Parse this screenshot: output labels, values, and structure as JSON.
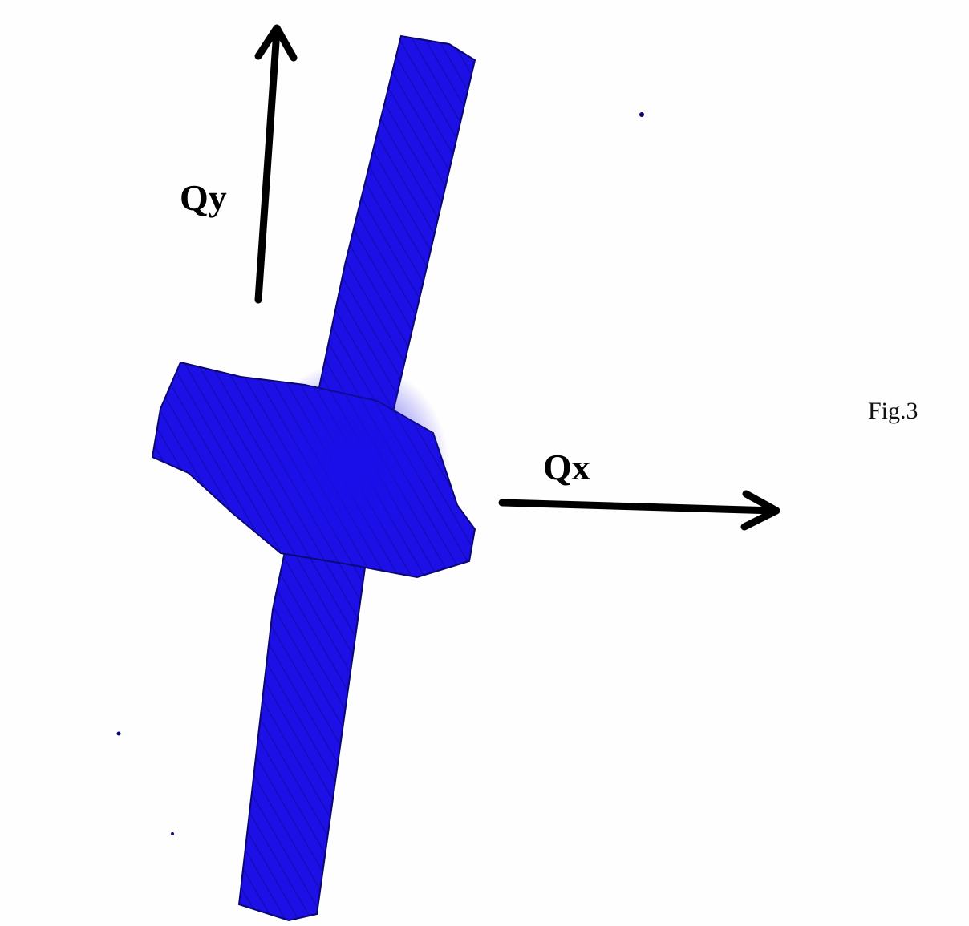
{
  "labels": {
    "qy": "Qy",
    "qx": "Qx",
    "figure": "Fig.3"
  }
}
